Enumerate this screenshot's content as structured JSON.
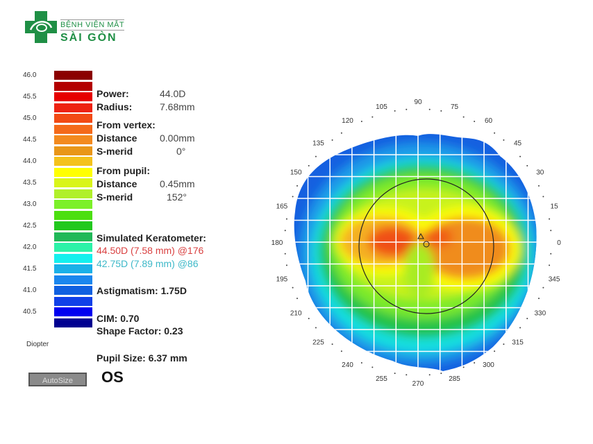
{
  "logo": {
    "line1": "BỆNH VIỆN MẮT",
    "line2": "SÀI GÒN",
    "color": "#1f8f45"
  },
  "scale": {
    "unit": "Diopter",
    "labels": [
      "46.0",
      "45.5",
      "45.0",
      "44.5",
      "44.0",
      "43.5",
      "43.0",
      "42.5",
      "42.0",
      "41.5",
      "41.0",
      "40.5"
    ],
    "colors": [
      "#8b0000",
      "#b30000",
      "#e60000",
      "#ee2211",
      "#f24a14",
      "#f46a1a",
      "#f38a1e",
      "#e99618",
      "#f4c21c",
      "#ffff00",
      "#d9f51a",
      "#b0f02a",
      "#7cf02a",
      "#4cdf10",
      "#22c81e",
      "#20b858",
      "#2cf2a8",
      "#14f0ee",
      "#1ab0e8",
      "#1a86ee",
      "#1060e0",
      "#1040e8",
      "#0000f0",
      "#000090"
    ]
  },
  "info": {
    "power_label": "Power:",
    "power_value": "44.0D",
    "radius_label": "Radius:",
    "radius_value": "7.68mm",
    "from_vertex": "From vertex:",
    "vertex_distance_label": "Distance",
    "vertex_distance_value": "0.00mm",
    "vertex_smerid_label": "S-merid",
    "vertex_smerid_value": "0°",
    "from_pupil": "From pupil:",
    "pupil_distance_label": "Distance",
    "pupil_distance_value": "0.45mm",
    "pupil_smerid_label": "S-merid",
    "pupil_smerid_value": "152°",
    "simk_label": "Simulated Keratometer:",
    "simk_steep": "44.50D (7.58 mm) @176",
    "simk_steep_color": "#d94040",
    "simk_flat": "42.75D (7.89 mm) @86",
    "simk_flat_color": "#3cb8c8",
    "astig": "Astigmatism: 1.75D",
    "cim": "CIM:   0.70",
    "shape": "Shape Factor: 0.23",
    "pupil_size": "Pupil Size: 6.37 mm"
  },
  "autosize_label": "AutoSize",
  "eye": "OS",
  "map": {
    "angles": [
      "0",
      "15",
      "30",
      "45",
      "60",
      "75",
      "90",
      "105",
      "120",
      "135",
      "150",
      "165",
      "180",
      "195",
      "210",
      "225",
      "240",
      "255",
      "270",
      "285",
      "300",
      "315",
      "330",
      "345"
    ]
  }
}
